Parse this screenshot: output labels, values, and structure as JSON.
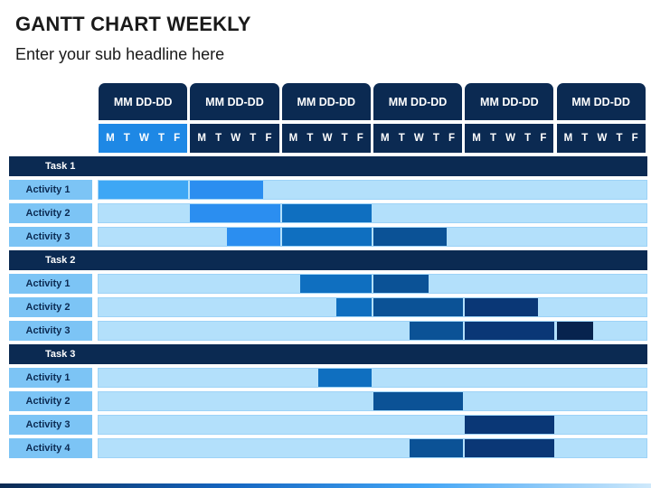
{
  "header": {
    "title": "GANTT CHART WEEKLY",
    "subtitle": "Enter your sub headline here"
  },
  "colors": {
    "week_header": "#0b2a52",
    "day_row_first": "#1e88e5",
    "day_row_other": "#0b2a52",
    "task_bar": "#0b2a52",
    "activity_label": "#7cc4f5",
    "track": "#b3e0fb",
    "week_bar_colors": [
      "#3ea7f5",
      "#2b8ef0",
      "#0f6fc0",
      "#0b5296",
      "#0a3776",
      "#07234e"
    ]
  },
  "chart_data": {
    "type": "gantt",
    "weeks": [
      "MM DD-DD",
      "MM DD-DD",
      "MM DD-DD",
      "MM DD-DD",
      "MM DD-DD",
      "MM DD-DD"
    ],
    "days": [
      "M",
      "T",
      "W",
      "T",
      "F"
    ],
    "tasks": [
      {
        "name": "Task 1",
        "activities": [
          {
            "name": "Activity 1",
            "start": 0,
            "end": 1.8
          },
          {
            "name": "Activity 2",
            "start": 1,
            "end": 3
          },
          {
            "name": "Activity 3",
            "start": 1.4,
            "end": 3.8
          }
        ]
      },
      {
        "name": "Task 2",
        "activities": [
          {
            "name": "Activity 1",
            "start": 2.2,
            "end": 3.6
          },
          {
            "name": "Activity 2",
            "start": 2.6,
            "end": 4.8
          },
          {
            "name": "Activity 3",
            "start": 3.4,
            "end": 5.4
          }
        ]
      },
      {
        "name": "Task 3",
        "activities": [
          {
            "name": "Activity 1",
            "start": 2.4,
            "end": 3
          },
          {
            "name": "Activity 2",
            "start": 3,
            "end": 4
          },
          {
            "name": "Activity 3",
            "start": 4,
            "end": 5
          },
          {
            "name": "Activity 4",
            "start": 3.4,
            "end": 5
          }
        ]
      }
    ]
  }
}
